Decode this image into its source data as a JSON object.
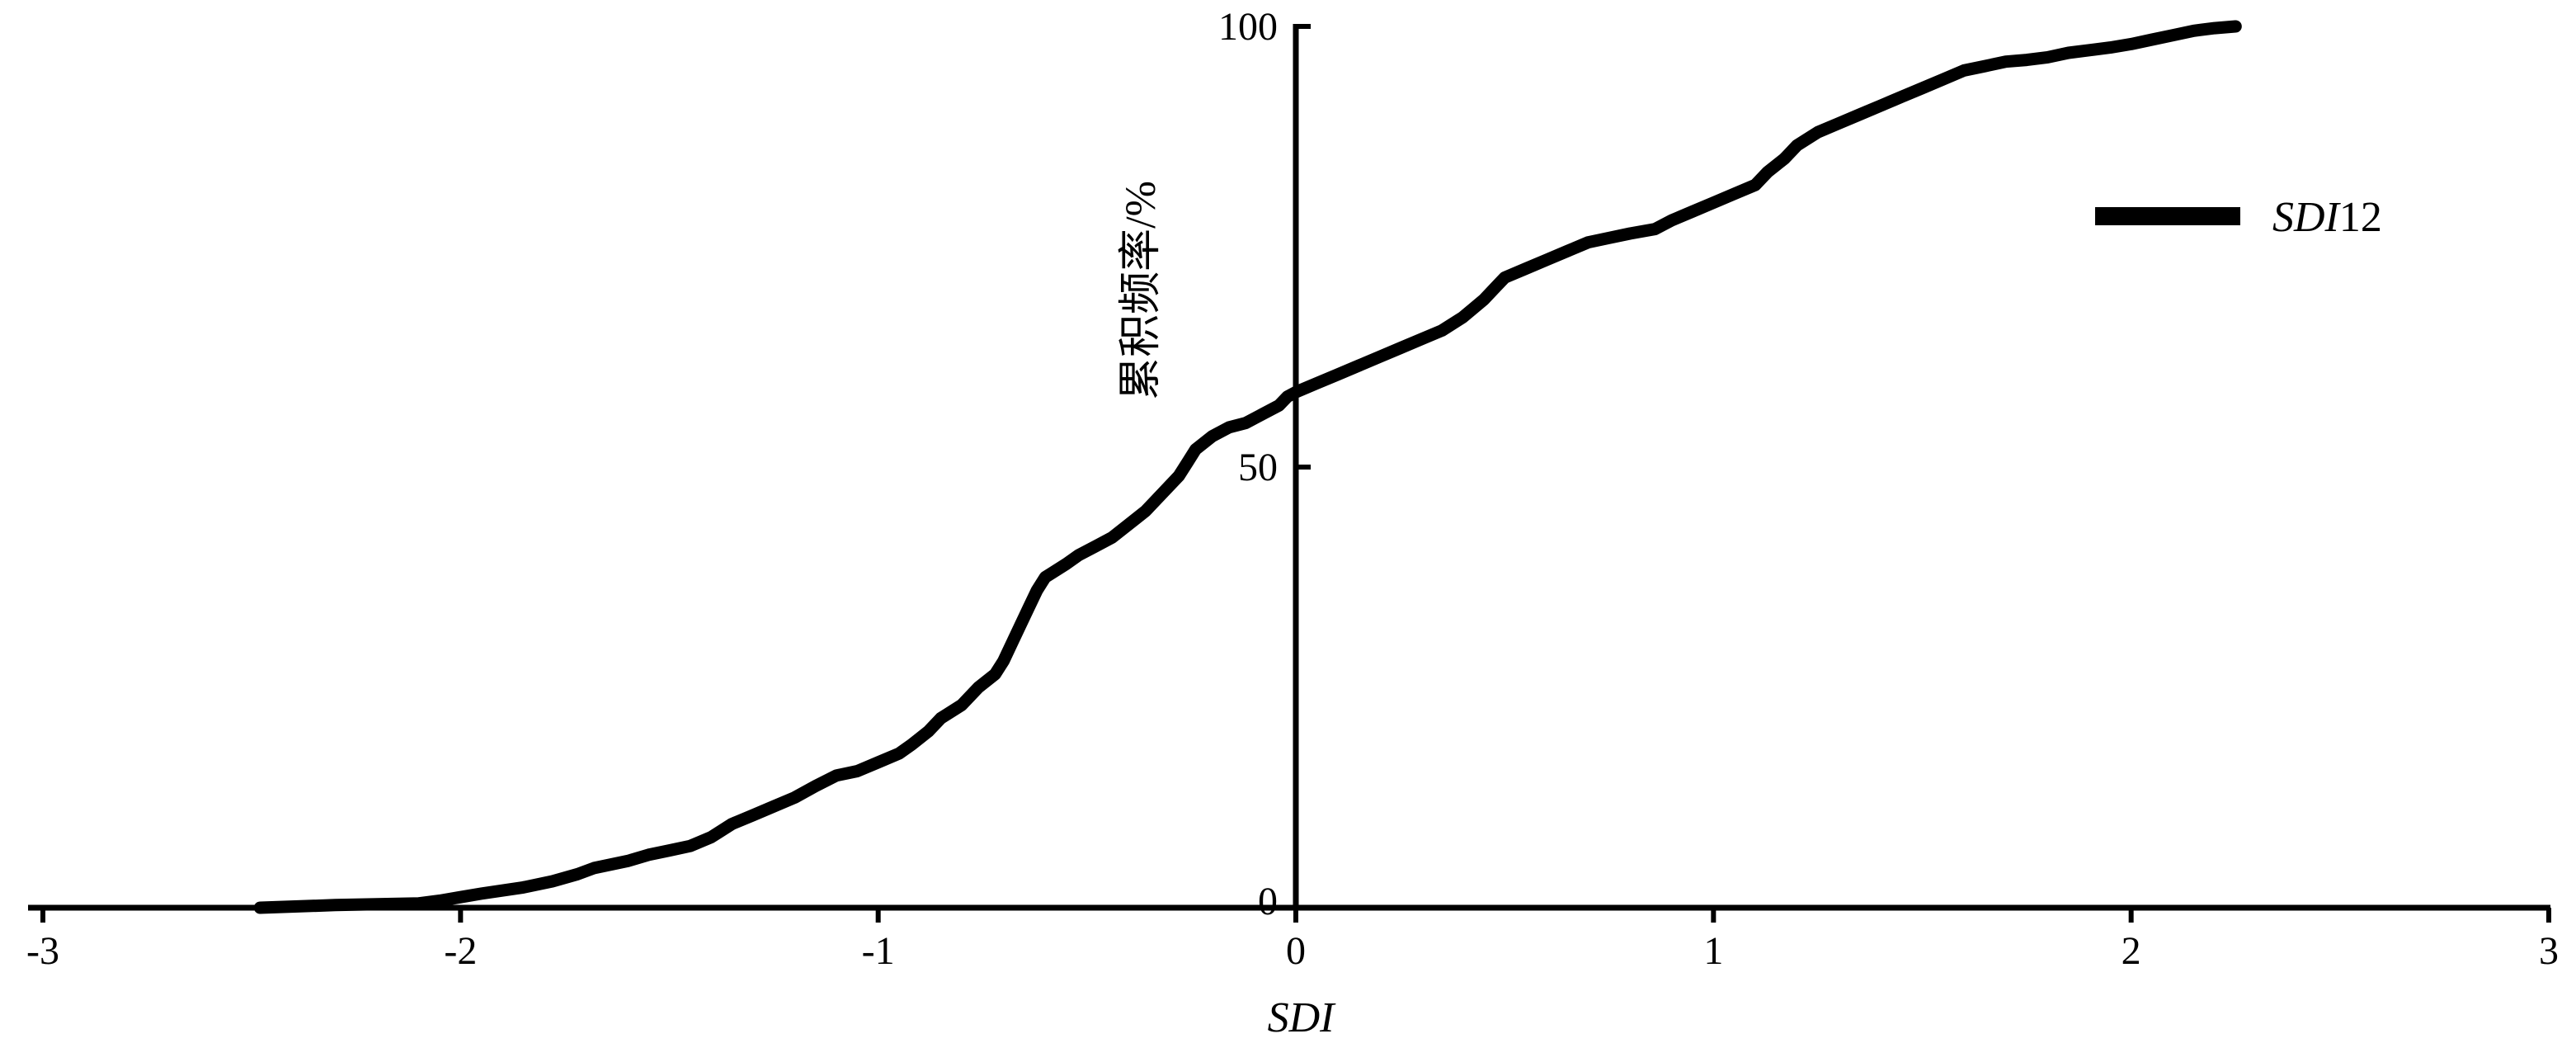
{
  "chart_data": {
    "type": "line",
    "xlabel": "SDI",
    "ylabel": "累积频率/%",
    "xlim": [
      -3,
      3
    ],
    "ylim": [
      0,
      100
    ],
    "xticks": [
      "-3",
      "-2",
      "-1",
      "0",
      "1",
      "2",
      "3"
    ],
    "yticks": [
      "0",
      "50",
      "100"
    ],
    "legend_position": "top-right",
    "grid": false,
    "colors": {
      "series": "#000000",
      "axes": "#000000"
    },
    "series": [
      {
        "name": "SDI12",
        "name_italic_part": "SDI",
        "name_plain_part": "12",
        "x": [
          -2.48,
          -2.3,
          -2.1,
          -2.05,
          -2.0,
          -1.95,
          -1.85,
          -1.78,
          -1.72,
          -1.68,
          -1.6,
          -1.55,
          -1.5,
          -1.45,
          -1.4,
          -1.35,
          -1.3,
          -1.25,
          -1.2,
          -1.15,
          -1.1,
          -1.05,
          -1.0,
          -0.95,
          -0.92,
          -0.88,
          -0.85,
          -0.8,
          -0.76,
          -0.72,
          -0.7,
          -0.68,
          -0.66,
          -0.64,
          -0.62,
          -0.6,
          -0.55,
          -0.52,
          -0.48,
          -0.44,
          -0.4,
          -0.36,
          -0.32,
          -0.28,
          -0.26,
          -0.24,
          -0.2,
          -0.16,
          -0.12,
          -0.08,
          -0.04,
          -0.02,
          0.0,
          0.05,
          0.1,
          0.15,
          0.2,
          0.25,
          0.3,
          0.35,
          0.4,
          0.45,
          0.48,
          0.5,
          0.55,
          0.6,
          0.65,
          0.7,
          0.75,
          0.8,
          0.86,
          0.9,
          0.95,
          1.0,
          1.05,
          1.1,
          1.13,
          1.17,
          1.2,
          1.25,
          1.3,
          1.35,
          1.4,
          1.45,
          1.5,
          1.55,
          1.6,
          1.65,
          1.7,
          1.75,
          1.8,
          1.85,
          1.9,
          1.95,
          2.0,
          2.05,
          2.1,
          2.15,
          2.2,
          2.25
        ],
        "y": [
          0,
          0.3,
          0.5,
          0.8,
          1.2,
          1.6,
          2.3,
          3.0,
          3.8,
          4.5,
          5.3,
          6.0,
          6.5,
          7.0,
          8.0,
          9.5,
          10.5,
          11.5,
          12.5,
          13.8,
          15.0,
          15.5,
          16.5,
          17.5,
          18.5,
          20.0,
          21.5,
          23.0,
          25.0,
          26.5,
          28.0,
          30.0,
          32.0,
          34.0,
          36.0,
          37.5,
          39.0,
          40.0,
          41.0,
          42.0,
          43.5,
          45.0,
          47.0,
          49.0,
          50.5,
          52.0,
          53.5,
          54.5,
          55.0,
          56.0,
          57.0,
          58.0,
          58.5,
          59.5,
          60.5,
          61.5,
          62.5,
          63.5,
          64.5,
          65.5,
          67.0,
          69.0,
          70.5,
          71.5,
          72.5,
          73.5,
          74.5,
          75.5,
          76.0,
          76.5,
          77.0,
          78.0,
          79.0,
          80.0,
          81.0,
          82.0,
          83.5,
          85.0,
          86.5,
          88.0,
          89.0,
          90.0,
          91.0,
          92.0,
          93.0,
          94.0,
          95.0,
          95.5,
          96.0,
          96.2,
          96.5,
          97.0,
          97.3,
          97.6,
          98.0,
          98.5,
          99.0,
          99.5,
          99.8,
          100
        ]
      }
    ]
  }
}
